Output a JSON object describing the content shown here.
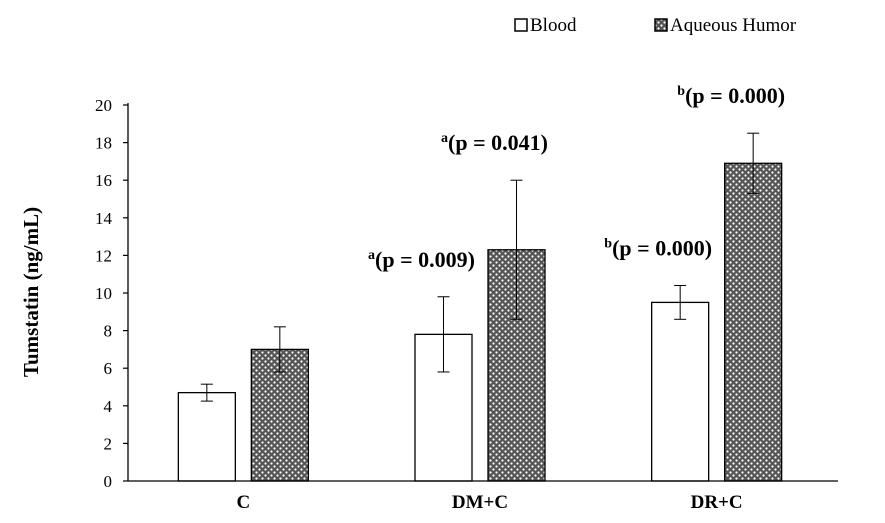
{
  "chart_data": {
    "type": "bar",
    "title": "",
    "xlabel": "",
    "ylabel": "Tumstatin (ng/mL)",
    "ylim": [
      0,
      20
    ],
    "yticks": [
      0,
      2,
      4,
      6,
      8,
      10,
      12,
      14,
      16,
      18,
      20
    ],
    "grid": false,
    "legend_position": "top-right",
    "categories": [
      "C",
      "DM+C",
      "DR+C"
    ],
    "series": [
      {
        "name": "Blood",
        "fill": "#ffffff",
        "values": [
          4.7,
          7.8,
          9.5
        ],
        "error": [
          0.45,
          2.0,
          0.9
        ]
      },
      {
        "name": "Aqueous Humor",
        "fill": "#555555",
        "pattern": "dotted",
        "values": [
          7.0,
          12.3,
          16.9
        ],
        "error": [
          1.2,
          3.7,
          1.6
        ]
      }
    ],
    "annotations": [
      {
        "category": "DM+C",
        "series": "Blood",
        "sup": "a",
        "text": "(p = 0.009)"
      },
      {
        "category": "DM+C",
        "series": "Aqueous Humor",
        "sup": "a",
        "text": "(p = 0.041)"
      },
      {
        "category": "DR+C",
        "series": "Blood",
        "sup": "b",
        "text": "(p = 0.000)"
      },
      {
        "category": "DR+C",
        "series": "Aqueous Humor",
        "sup": "b",
        "text": "(p = 0.000)"
      }
    ]
  }
}
